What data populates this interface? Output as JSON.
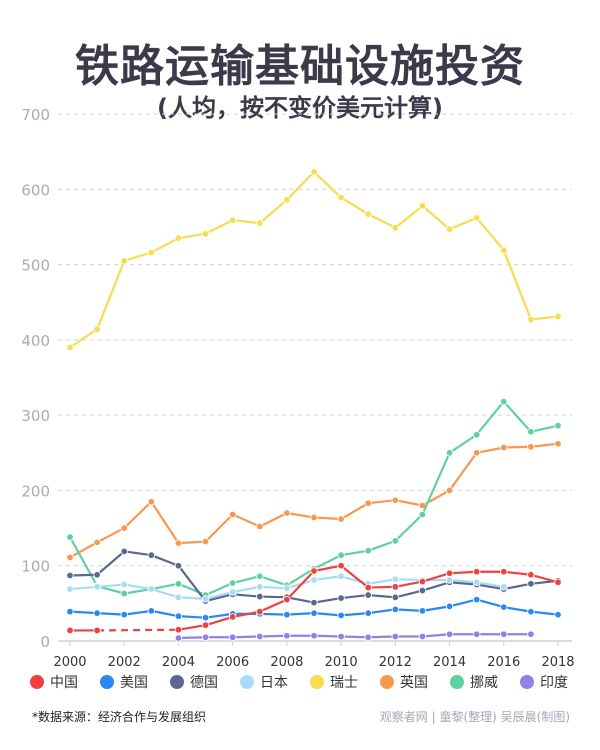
{
  "title": "铁路运输基础设施投资",
  "subtitle": "(人均，按不变价美元计算)",
  "source": "*数据来源：经济合作与发展组织",
  "credit": "观察者网 | 童黎(整理)  吴辰晨(制图)",
  "chart_data": {
    "type": "line",
    "title": "铁路运输基础设施投资",
    "xlabel": "",
    "ylabel": "",
    "ylim": [
      0,
      700
    ],
    "yticks": [
      "0",
      "100",
      "200",
      "300",
      "400",
      "500",
      "600",
      "700"
    ],
    "xticks": [
      "2000",
      "2002",
      "2004",
      "2006",
      "2008",
      "2010",
      "2012",
      "2014",
      "2016",
      "2018"
    ],
    "grid": true,
    "legend": "bottom",
    "x": [
      2000,
      2001,
      2002,
      2003,
      2004,
      2005,
      2006,
      2007,
      2008,
      2009,
      2010,
      2011,
      2012,
      2013,
      2014,
      2015,
      2016,
      2017,
      2018
    ],
    "series": [
      {
        "name": "中国",
        "color": "#f04040",
        "values": [
          14,
          14,
          null,
          null,
          15,
          21,
          32,
          39,
          55,
          93,
          100,
          71,
          72,
          79,
          90,
          92,
          92,
          88,
          78
        ]
      },
      {
        "name": "美国",
        "color": "#2a88f0",
        "values": [
          39,
          37,
          35,
          40,
          33,
          31,
          36,
          36,
          35,
          37,
          34,
          37,
          42,
          40,
          46,
          55,
          45,
          39,
          35
        ]
      },
      {
        "name": "德国",
        "color": "#5a6890",
        "values": [
          87,
          88,
          119,
          114,
          100,
          53,
          62,
          59,
          58,
          51,
          57,
          61,
          58,
          67,
          78,
          75,
          69,
          76,
          80
        ]
      },
      {
        "name": "日本",
        "color": "#a8dcf6",
        "values": [
          69,
          72,
          75,
          69,
          58,
          56,
          65,
          72,
          70,
          81,
          86,
          76,
          82,
          81,
          81,
          78,
          72,
          null,
          null
        ]
      },
      {
        "name": "瑞士",
        "color": "#f8dc50",
        "values": [
          390,
          414,
          505,
          516,
          535,
          541,
          559,
          555,
          586,
          623,
          589,
          567,
          549,
          578,
          547,
          562,
          519,
          427,
          431
        ]
      },
      {
        "name": "英国",
        "color": "#f89850",
        "values": [
          111,
          131,
          150,
          185,
          130,
          132,
          168,
          152,
          170,
          164,
          162,
          183,
          187,
          180,
          200,
          250,
          257,
          258,
          262
        ]
      },
      {
        "name": "挪威",
        "color": "#60d0a0",
        "values": [
          138,
          73,
          63,
          69,
          76,
          61,
          77,
          86,
          74,
          96,
          114,
          120,
          133,
          168,
          250,
          274,
          318,
          278,
          286
        ]
      },
      {
        "name": "印度",
        "color": "#9080e8",
        "values": [
          null,
          null,
          null,
          null,
          4,
          5,
          5,
          6,
          7,
          7,
          6,
          5,
          6,
          6,
          9,
          9,
          9,
          9,
          null
        ]
      }
    ]
  }
}
